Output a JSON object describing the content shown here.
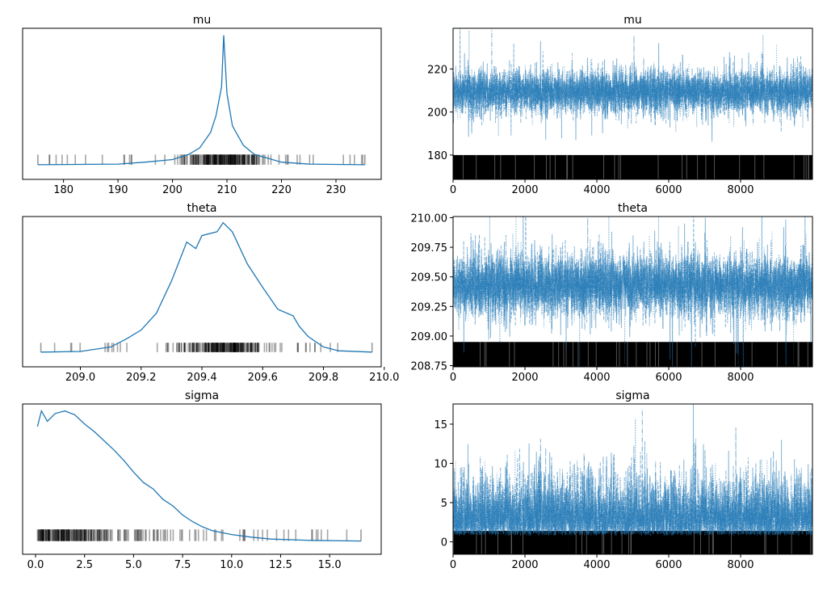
{
  "chart_data": [
    {
      "type": "line",
      "kind": "kde",
      "title": "mu",
      "xlim": [
        172.5,
        238.3
      ],
      "xticks": [
        180,
        190,
        200,
        210,
        220,
        230
      ],
      "xtick_labels": [
        "180",
        "190",
        "200",
        "210",
        "220",
        "230"
      ],
      "x": [
        175.3,
        190,
        195,
        200,
        203,
        205,
        207,
        208,
        209,
        209.4,
        210,
        211,
        213,
        215,
        220,
        225,
        235.3
      ],
      "y": [
        0,
        0.005,
        0.02,
        0.04,
        0.08,
        0.13,
        0.25,
        0.38,
        0.6,
        1.0,
        0.55,
        0.3,
        0.15,
        0.08,
        0.02,
        0.005,
        0
      ],
      "rug": true,
      "color": "#1f77b4"
    },
    {
      "type": "line",
      "kind": "trace",
      "title": "mu",
      "xlim": [
        0,
        9999
      ],
      "ylim": [
        168.7,
        238.9
      ],
      "xticks": [
        0,
        2000,
        4000,
        6000,
        8000
      ],
      "xtick_labels": [
        "0",
        "2000",
        "4000",
        "6000",
        "8000"
      ],
      "yticks": [
        180,
        200,
        220
      ],
      "ytick_labels": [
        "180",
        "200",
        "220"
      ],
      "chains": 4,
      "draws": 10000,
      "center": 209.4,
      "spread": 5,
      "rug_top": 180,
      "color": "#1f77b4"
    },
    {
      "type": "line",
      "kind": "kde",
      "title": "theta",
      "xlim": [
        208.81,
        209.99
      ],
      "xticks": [
        209.0,
        209.2,
        209.4,
        209.6,
        209.8,
        210.0
      ],
      "xtick_labels": [
        "209.0",
        "209.2",
        "209.4",
        "209.6",
        "209.8",
        "210.0"
      ],
      "x": [
        208.87,
        209.0,
        209.1,
        209.15,
        209.2,
        209.25,
        209.3,
        209.35,
        209.38,
        209.4,
        209.45,
        209.47,
        209.5,
        209.55,
        209.6,
        209.65,
        209.7,
        209.72,
        209.75,
        209.8,
        209.85,
        209.96
      ],
      "y": [
        0,
        0.005,
        0.04,
        0.1,
        0.17,
        0.3,
        0.55,
        0.85,
        0.8,
        0.9,
        0.93,
        1.0,
        0.93,
        0.68,
        0.5,
        0.33,
        0.28,
        0.2,
        0.12,
        0.04,
        0.01,
        0
      ],
      "rug": true,
      "color": "#1f77b4"
    },
    {
      "type": "line",
      "kind": "trace",
      "title": "theta",
      "xlim": [
        0,
        9999
      ],
      "ylim": [
        208.74,
        210.01
      ],
      "xticks": [
        0,
        2000,
        4000,
        6000,
        8000
      ],
      "xtick_labels": [
        "0",
        "2000",
        "4000",
        "6000",
        "8000"
      ],
      "yticks": [
        208.75,
        209.0,
        209.25,
        209.5,
        209.75,
        210.0
      ],
      "ytick_labels": [
        "208.75",
        "209.00",
        "209.25",
        "209.50",
        "209.75",
        "210.00"
      ],
      "chains": 4,
      "draws": 10000,
      "center": 209.43,
      "spread": 0.13,
      "rug_top": 208.95,
      "color": "#1f77b4"
    },
    {
      "type": "line",
      "kind": "kde",
      "title": "sigma",
      "xlim": [
        -0.66,
        17.63
      ],
      "xticks": [
        0,
        2.5,
        5,
        7.5,
        10,
        12.5,
        15
      ],
      "xtick_labels": [
        "0.0",
        "2.5",
        "5.0",
        "7.5",
        "10.0",
        "12.5",
        "15.0"
      ],
      "x": [
        0.1,
        0.3,
        0.6,
        1.0,
        1.5,
        2.0,
        2.5,
        3.0,
        3.5,
        4.0,
        4.5,
        5.0,
        5.5,
        6.0,
        6.5,
        7.0,
        7.5,
        8.0,
        8.5,
        9.0,
        10,
        11,
        12,
        14,
        16.6
      ],
      "y": [
        0.88,
        1.0,
        0.92,
        0.98,
        1.0,
        0.97,
        0.9,
        0.84,
        0.77,
        0.7,
        0.62,
        0.53,
        0.45,
        0.4,
        0.32,
        0.27,
        0.2,
        0.15,
        0.11,
        0.08,
        0.05,
        0.03,
        0.015,
        0.005,
        0
      ],
      "rug": true,
      "color": "#1f77b4"
    },
    {
      "type": "line",
      "kind": "trace",
      "title": "sigma",
      "xlim": [
        0,
        9999
      ],
      "ylim": [
        -1.58,
        17.57
      ],
      "xticks": [
        0,
        2000,
        4000,
        6000,
        8000
      ],
      "xtick_labels": [
        "0",
        "2000",
        "4000",
        "6000",
        "8000"
      ],
      "yticks": [
        0,
        5,
        10,
        15
      ],
      "ytick_labels": [
        "0",
        "5",
        "10",
        "15"
      ],
      "chains": 4,
      "draws": 10000,
      "center": 3.5,
      "spread": 2.6,
      "rug_top": 1.4,
      "color": "#1f77b4"
    }
  ]
}
